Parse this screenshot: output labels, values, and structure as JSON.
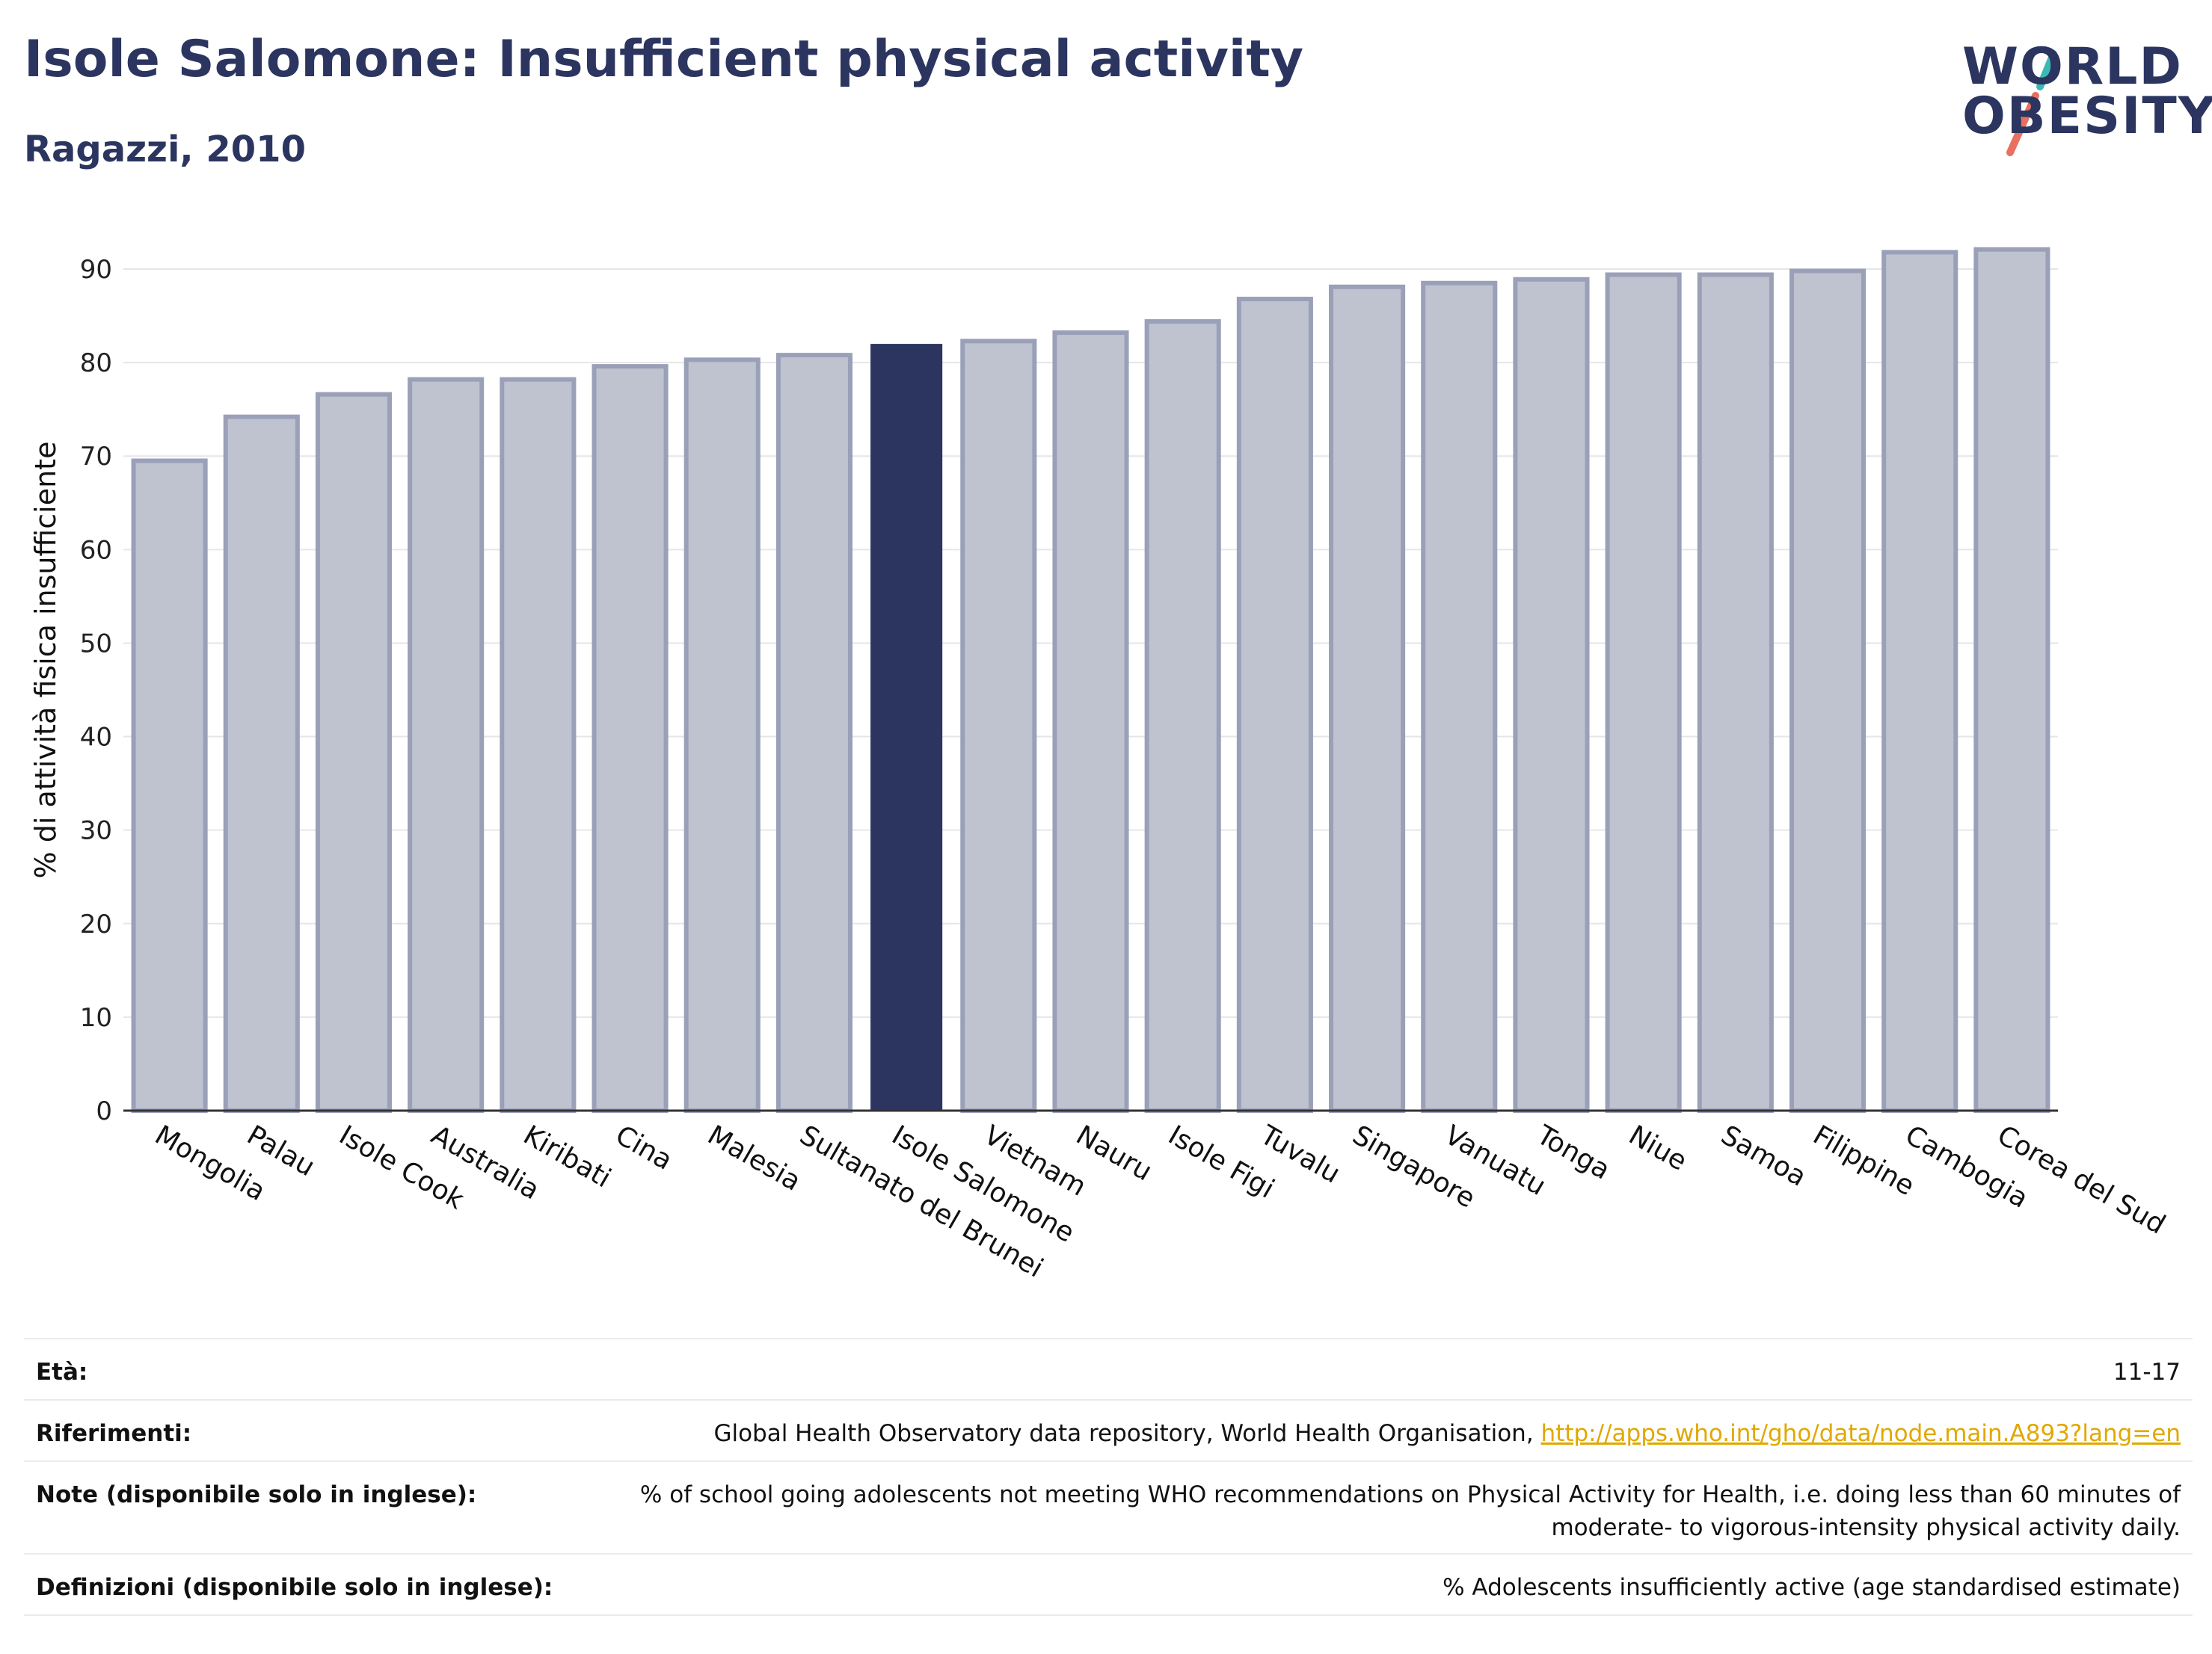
{
  "header": {
    "title": "Isole Salomone: Insufficient physical activity",
    "subtitle": "Ragazzi, 2010"
  },
  "logo": {
    "line1": "WORLD",
    "line2": "OBESITY"
  },
  "colors": {
    "highlight": "#2b3560",
    "bar_fill": "#bfc3cf",
    "bar_stroke": "#9aa0b8",
    "grid": "#e6e6e6",
    "axis": "#333333",
    "link": "#e0a800"
  },
  "chart_data": {
    "type": "bar",
    "ylabel": "% di attività fisica insufficiente",
    "xlabel": "",
    "ylim": [
      0,
      95
    ],
    "yticks": [
      0,
      10,
      20,
      30,
      40,
      50,
      60,
      70,
      80,
      90
    ],
    "grid": true,
    "highlight": "Isole Salomone",
    "categories": [
      "Mongolia",
      "Palau",
      "Isole Cook",
      "Australia",
      "Kiribati",
      "Cina",
      "Malesia",
      "Sultanato del Brunei",
      "Isole Salomone",
      "Vietnam",
      "Nauru",
      "Isole Figi",
      "Tuvalu",
      "Singapore",
      "Vanuatu",
      "Tonga",
      "Niue",
      "Samoa",
      "Filippine",
      "Cambogia",
      "Corea del Sud"
    ],
    "values": [
      69.5,
      74.2,
      76.6,
      78.2,
      78.2,
      79.6,
      80.3,
      80.8,
      82.0,
      82.3,
      83.2,
      84.4,
      86.8,
      88.1,
      88.5,
      88.9,
      89.4,
      89.4,
      89.8,
      91.8,
      92.1
    ]
  },
  "meta": {
    "age": {
      "label": "Età:",
      "value": "11-17"
    },
    "references": {
      "label": "Riferimenti:",
      "value": "Global Health Observatory data repository, World Health Organisation, ",
      "link": "http://apps.who.int/gho/data/node.main.A893?lang=en"
    },
    "notes": {
      "label": "Note (disponibile solo in inglese):",
      "line1": "% of school going adolescents not meeting WHO recommendations on Physical Activity for Health, i.e. doing less than 60 minutes of",
      "line2": "moderate- to vigorous-intensity physical activity daily."
    },
    "definitions": {
      "label": "Definizioni (disponibile solo in inglese):",
      "value": "% Adolescents insufficiently active (age standardised estimate)"
    }
  }
}
